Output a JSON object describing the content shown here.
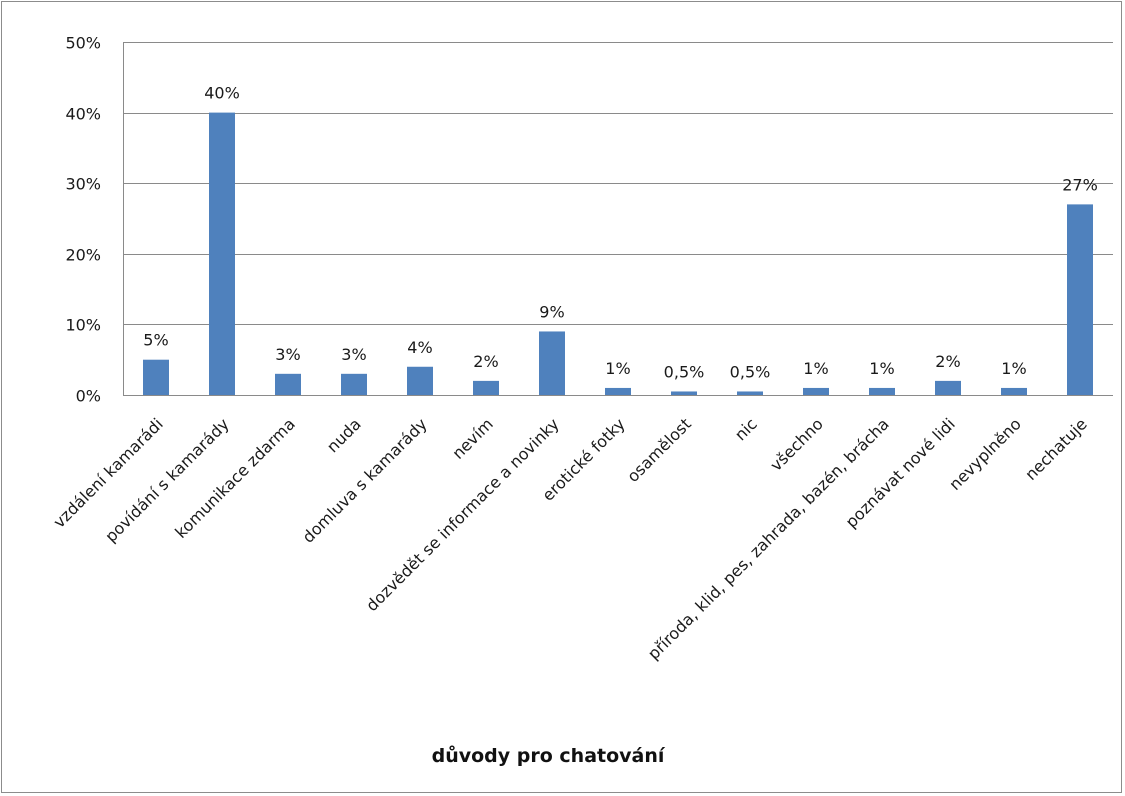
{
  "chart_data": {
    "type": "bar",
    "title": "",
    "xlabel": "důvody pro chatování",
    "ylabel": "",
    "ylim": [
      0,
      50
    ],
    "yticks": [
      "0%",
      "10%",
      "20%",
      "30%",
      "40%",
      "50%"
    ],
    "ytick_values": [
      0,
      10,
      20,
      30,
      40,
      50
    ],
    "grid": true,
    "legend": "none",
    "categories": [
      "vzdálení kamarádi",
      "povídání s kamarády",
      "komunikace zdarma",
      "nuda",
      "domluva s kamarády",
      "nevím",
      "dozvědět se informace a novinky",
      "erotické fotky",
      "osamělost",
      "nic",
      "všechno",
      "příroda, klid, pes, zahrada, bazén, brácha",
      "poznávat nové lidi",
      "nevyplněno",
      "nechatuje"
    ],
    "values": [
      5,
      40,
      3,
      3,
      4,
      2,
      9,
      1,
      0.5,
      0.5,
      1,
      1,
      2,
      1,
      27
    ],
    "data_labels": [
      "5%",
      "40%",
      "3%",
      "3%",
      "4%",
      "2%",
      "9%",
      "1%",
      "0,5%",
      "0,5%",
      "1%",
      "1%",
      "2%",
      "1%",
      "27%"
    ],
    "colors": {
      "bar": "#4f81bd",
      "grid": "#8a8a8a"
    }
  }
}
